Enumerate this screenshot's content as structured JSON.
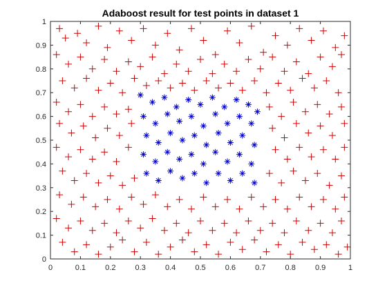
{
  "chart_data": {
    "type": "scatter",
    "title": "Adaboost result for test points in dataset 1",
    "xlabel": "",
    "ylabel": "",
    "xlim": [
      0,
      1
    ],
    "ylim": [
      0,
      1
    ],
    "xticks": [
      "0",
      "0.1",
      "0.2",
      "0.3",
      "0.4",
      "0.5",
      "0.6",
      "0.7",
      "0.8",
      "0.9",
      "1"
    ],
    "yticks": [
      "0",
      "0.1",
      "0.2",
      "0.3",
      "0.4",
      "0.5",
      "0.6",
      "0.7",
      "0.8",
      "0.9",
      "1"
    ],
    "grid": false,
    "legend": "none",
    "series": [
      {
        "marker": "plus",
        "color": "#cc0000",
        "points": [
          [
            0.03,
            0.97
          ],
          [
            0.05,
            0.93
          ],
          [
            0.09,
            0.95
          ],
          [
            0.12,
            0.91
          ],
          [
            0.16,
            0.98
          ],
          [
            0.19,
            0.89
          ],
          [
            0.23,
            0.96
          ],
          [
            0.27,
            0.92
          ],
          [
            0.31,
            0.97
          ],
          [
            0.35,
            0.9
          ],
          [
            0.39,
            0.95
          ],
          [
            0.43,
            0.88
          ],
          [
            0.47,
            0.97
          ],
          [
            0.51,
            0.92
          ],
          [
            0.55,
            0.86
          ],
          [
            0.59,
            0.96
          ],
          [
            0.63,
            0.91
          ],
          [
            0.67,
            0.98
          ],
          [
            0.71,
            0.87
          ],
          [
            0.75,
            0.94
          ],
          [
            0.79,
            0.9
          ],
          [
            0.83,
            0.97
          ],
          [
            0.87,
            0.92
          ],
          [
            0.91,
            0.96
          ],
          [
            0.95,
            0.89
          ],
          [
            0.98,
            0.94
          ],
          [
            0.02,
            0.86
          ],
          [
            0.06,
            0.82
          ],
          [
            0.1,
            0.85
          ],
          [
            0.14,
            0.8
          ],
          [
            0.18,
            0.84
          ],
          [
            0.22,
            0.79
          ],
          [
            0.26,
            0.83
          ],
          [
            0.3,
            0.81
          ],
          [
            0.34,
            0.85
          ],
          [
            0.38,
            0.78
          ],
          [
            0.42,
            0.82
          ],
          [
            0.46,
            0.79
          ],
          [
            0.5,
            0.84
          ],
          [
            0.54,
            0.78
          ],
          [
            0.58,
            0.82
          ],
          [
            0.62,
            0.79
          ],
          [
            0.66,
            0.84
          ],
          [
            0.7,
            0.8
          ],
          [
            0.74,
            0.85
          ],
          [
            0.78,
            0.79
          ],
          [
            0.82,
            0.83
          ],
          [
            0.86,
            0.78
          ],
          [
            0.9,
            0.85
          ],
          [
            0.94,
            0.81
          ],
          [
            0.97,
            0.86
          ],
          [
            0.04,
            0.75
          ],
          [
            0.08,
            0.72
          ],
          [
            0.12,
            0.76
          ],
          [
            0.16,
            0.71
          ],
          [
            0.2,
            0.74
          ],
          [
            0.24,
            0.7
          ],
          [
            0.28,
            0.76
          ],
          [
            0.32,
            0.73
          ],
          [
            0.36,
            0.75
          ],
          [
            0.4,
            0.72
          ],
          [
            0.44,
            0.74
          ],
          [
            0.48,
            0.71
          ],
          [
            0.52,
            0.75
          ],
          [
            0.56,
            0.72
          ],
          [
            0.6,
            0.74
          ],
          [
            0.64,
            0.71
          ],
          [
            0.68,
            0.75
          ],
          [
            0.72,
            0.7
          ],
          [
            0.76,
            0.74
          ],
          [
            0.8,
            0.71
          ],
          [
            0.84,
            0.76
          ],
          [
            0.88,
            0.72
          ],
          [
            0.92,
            0.75
          ],
          [
            0.96,
            0.7
          ],
          [
            0.02,
            0.66
          ],
          [
            0.06,
            0.62
          ],
          [
            0.1,
            0.65
          ],
          [
            0.14,
            0.6
          ],
          [
            0.18,
            0.64
          ],
          [
            0.22,
            0.61
          ],
          [
            0.26,
            0.63
          ],
          [
            0.73,
            0.64
          ],
          [
            0.77,
            0.6
          ],
          [
            0.81,
            0.66
          ],
          [
            0.85,
            0.62
          ],
          [
            0.89,
            0.65
          ],
          [
            0.93,
            0.61
          ],
          [
            0.97,
            0.64
          ],
          [
            0.03,
            0.57
          ],
          [
            0.07,
            0.53
          ],
          [
            0.11,
            0.56
          ],
          [
            0.15,
            0.51
          ],
          [
            0.19,
            0.55
          ],
          [
            0.23,
            0.52
          ],
          [
            0.27,
            0.57
          ],
          [
            0.74,
            0.55
          ],
          [
            0.78,
            0.51
          ],
          [
            0.82,
            0.57
          ],
          [
            0.86,
            0.53
          ],
          [
            0.9,
            0.56
          ],
          [
            0.94,
            0.52
          ],
          [
            0.98,
            0.57
          ],
          [
            0.02,
            0.47
          ],
          [
            0.06,
            0.43
          ],
          [
            0.1,
            0.46
          ],
          [
            0.14,
            0.42
          ],
          [
            0.18,
            0.45
          ],
          [
            0.22,
            0.41
          ],
          [
            0.26,
            0.47
          ],
          [
            0.75,
            0.46
          ],
          [
            0.79,
            0.42
          ],
          [
            0.83,
            0.47
          ],
          [
            0.87,
            0.43
          ],
          [
            0.91,
            0.46
          ],
          [
            0.95,
            0.42
          ],
          [
            0.98,
            0.47
          ],
          [
            0.04,
            0.37
          ],
          [
            0.08,
            0.33
          ],
          [
            0.12,
            0.36
          ],
          [
            0.16,
            0.32
          ],
          [
            0.2,
            0.35
          ],
          [
            0.24,
            0.31
          ],
          [
            0.28,
            0.34
          ],
          [
            0.73,
            0.36
          ],
          [
            0.77,
            0.32
          ],
          [
            0.81,
            0.37
          ],
          [
            0.85,
            0.33
          ],
          [
            0.89,
            0.36
          ],
          [
            0.93,
            0.31
          ],
          [
            0.97,
            0.35
          ],
          [
            0.03,
            0.27
          ],
          [
            0.07,
            0.23
          ],
          [
            0.11,
            0.26
          ],
          [
            0.15,
            0.22
          ],
          [
            0.19,
            0.25
          ],
          [
            0.23,
            0.21
          ],
          [
            0.27,
            0.26
          ],
          [
            0.31,
            0.23
          ],
          [
            0.35,
            0.27
          ],
          [
            0.39,
            0.22
          ],
          [
            0.43,
            0.25
          ],
          [
            0.47,
            0.21
          ],
          [
            0.51,
            0.26
          ],
          [
            0.55,
            0.22
          ],
          [
            0.59,
            0.25
          ],
          [
            0.63,
            0.21
          ],
          [
            0.67,
            0.26
          ],
          [
            0.71,
            0.22
          ],
          [
            0.75,
            0.25
          ],
          [
            0.79,
            0.21
          ],
          [
            0.83,
            0.26
          ],
          [
            0.87,
            0.22
          ],
          [
            0.91,
            0.25
          ],
          [
            0.95,
            0.21
          ],
          [
            0.98,
            0.26
          ],
          [
            0.02,
            0.17
          ],
          [
            0.06,
            0.13
          ],
          [
            0.1,
            0.16
          ],
          [
            0.14,
            0.12
          ],
          [
            0.18,
            0.15
          ],
          [
            0.22,
            0.11
          ],
          [
            0.26,
            0.16
          ],
          [
            0.3,
            0.13
          ],
          [
            0.34,
            0.17
          ],
          [
            0.38,
            0.12
          ],
          [
            0.42,
            0.15
          ],
          [
            0.46,
            0.11
          ],
          [
            0.5,
            0.16
          ],
          [
            0.54,
            0.12
          ],
          [
            0.58,
            0.15
          ],
          [
            0.62,
            0.11
          ],
          [
            0.66,
            0.16
          ],
          [
            0.7,
            0.12
          ],
          [
            0.74,
            0.15
          ],
          [
            0.78,
            0.11
          ],
          [
            0.82,
            0.16
          ],
          [
            0.86,
            0.12
          ],
          [
            0.9,
            0.15
          ],
          [
            0.94,
            0.11
          ],
          [
            0.97,
            0.16
          ],
          [
            0.04,
            0.07
          ],
          [
            0.08,
            0.03
          ],
          [
            0.12,
            0.06
          ],
          [
            0.16,
            0.02
          ],
          [
            0.2,
            0.05
          ],
          [
            0.24,
            0.08
          ],
          [
            0.28,
            0.03
          ],
          [
            0.32,
            0.07
          ],
          [
            0.36,
            0.02
          ],
          [
            0.4,
            0.05
          ],
          [
            0.44,
            0.08
          ],
          [
            0.48,
            0.03
          ],
          [
            0.52,
            0.06
          ],
          [
            0.56,
            0.02
          ],
          [
            0.6,
            0.07
          ],
          [
            0.64,
            0.04
          ],
          [
            0.68,
            0.08
          ],
          [
            0.72,
            0.03
          ],
          [
            0.76,
            0.06
          ],
          [
            0.8,
            0.02
          ],
          [
            0.84,
            0.07
          ],
          [
            0.88,
            0.04
          ],
          [
            0.92,
            0.06
          ],
          [
            0.96,
            0.02
          ],
          [
            0.99,
            0.05
          ]
        ]
      },
      {
        "marker": "asterisk",
        "color": "#0000cc",
        "points": [
          [
            0.3,
            0.69
          ],
          [
            0.34,
            0.66
          ],
          [
            0.38,
            0.68
          ],
          [
            0.42,
            0.64
          ],
          [
            0.46,
            0.67
          ],
          [
            0.5,
            0.65
          ],
          [
            0.54,
            0.68
          ],
          [
            0.58,
            0.64
          ],
          [
            0.62,
            0.67
          ],
          [
            0.66,
            0.65
          ],
          [
            0.69,
            0.62
          ],
          [
            0.31,
            0.6
          ],
          [
            0.35,
            0.57
          ],
          [
            0.39,
            0.61
          ],
          [
            0.43,
            0.58
          ],
          [
            0.47,
            0.6
          ],
          [
            0.51,
            0.56
          ],
          [
            0.55,
            0.61
          ],
          [
            0.59,
            0.57
          ],
          [
            0.63,
            0.6
          ],
          [
            0.67,
            0.57
          ],
          [
            0.32,
            0.52
          ],
          [
            0.36,
            0.49
          ],
          [
            0.4,
            0.53
          ],
          [
            0.44,
            0.5
          ],
          [
            0.48,
            0.52
          ],
          [
            0.52,
            0.48
          ],
          [
            0.56,
            0.53
          ],
          [
            0.6,
            0.49
          ],
          [
            0.64,
            0.52
          ],
          [
            0.68,
            0.48
          ],
          [
            0.31,
            0.44
          ],
          [
            0.35,
            0.41
          ],
          [
            0.39,
            0.45
          ],
          [
            0.43,
            0.42
          ],
          [
            0.47,
            0.44
          ],
          [
            0.51,
            0.4
          ],
          [
            0.55,
            0.45
          ],
          [
            0.59,
            0.41
          ],
          [
            0.63,
            0.44
          ],
          [
            0.67,
            0.4
          ],
          [
            0.32,
            0.36
          ],
          [
            0.36,
            0.33
          ],
          [
            0.4,
            0.37
          ],
          [
            0.44,
            0.34
          ],
          [
            0.48,
            0.36
          ],
          [
            0.52,
            0.32
          ],
          [
            0.56,
            0.36
          ],
          [
            0.6,
            0.33
          ],
          [
            0.64,
            0.36
          ],
          [
            0.68,
            0.32
          ]
        ]
      }
    ]
  }
}
